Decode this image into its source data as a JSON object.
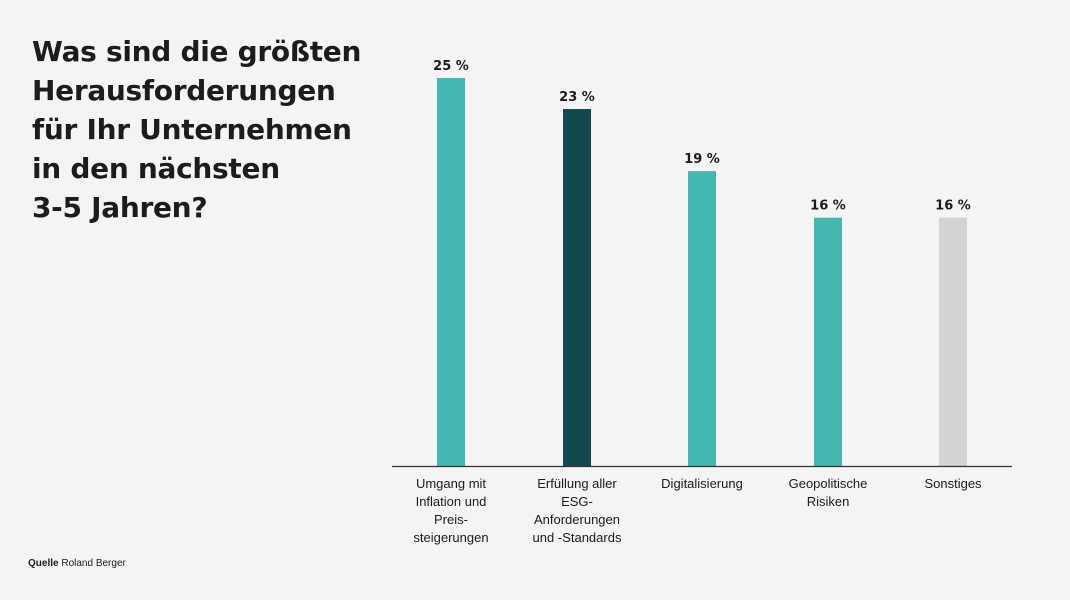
{
  "title_lines": [
    "Was sind die größten",
    "Herausforderungen",
    "für Ihr Unternehmen",
    "in den nächsten",
    "3-5 Jahren?"
  ],
  "source": {
    "label": "Quelle",
    "value": "Roland Berger"
  },
  "colors": {
    "teal": "#42b8b0",
    "dark_teal": "#12484f",
    "grey": "#d3d3d3",
    "axis": "#333333"
  },
  "chart_data": {
    "type": "bar",
    "categories": [
      "Umgang mit\nInflation und\nPreis-\nsteigerungen",
      "Erfüllung aller\nESG-\nAnforderungen\nund -Standards",
      "Digitalisierung",
      "Geopolitische\nRisiken",
      "Sonstiges"
    ],
    "values": [
      25,
      23,
      19,
      16,
      16
    ],
    "value_labels": [
      "25 %",
      "23 %",
      "19 %",
      "16 %",
      "16 %"
    ],
    "bar_colors": [
      "#42b8b0",
      "#12484f",
      "#42b8b0",
      "#42b8b0",
      "#d3d3d3"
    ],
    "ylim": [
      0,
      25
    ],
    "grid": false
  }
}
